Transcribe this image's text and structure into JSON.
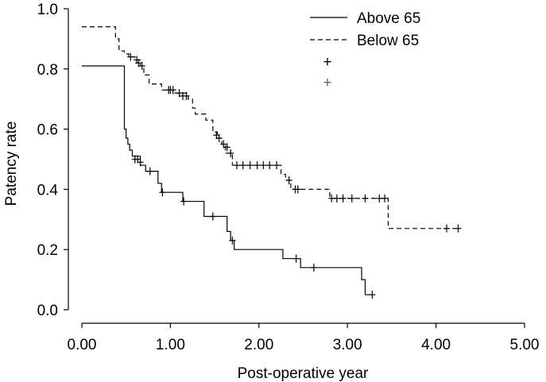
{
  "chart_data": {
    "type": "line",
    "subtype": "kaplan-meier step",
    "title": "",
    "xlabel": "Post-operative year",
    "ylabel": "Patency rate",
    "xlim": [
      0,
      5
    ],
    "ylim": [
      0,
      1
    ],
    "x_ticks": [
      "0.00",
      "1.00",
      "2.00",
      "3.00",
      "4.00",
      "5.00"
    ],
    "y_ticks": [
      "0.0",
      "0.2",
      "0.4",
      "0.6",
      "0.8",
      "1.0"
    ],
    "grid": false,
    "legend": "top-right",
    "legend_censor_symbols": [
      "+",
      "+"
    ],
    "series": [
      {
        "name": "Above 65",
        "line_style": "solid",
        "steps": [
          [
            0.0,
            0.81
          ],
          [
            0.48,
            0.6
          ],
          [
            0.5,
            0.57
          ],
          [
            0.52,
            0.55
          ],
          [
            0.54,
            0.53
          ],
          [
            0.57,
            0.51
          ],
          [
            0.66,
            0.48
          ],
          [
            0.72,
            0.46
          ],
          [
            0.86,
            0.42
          ],
          [
            0.9,
            0.39
          ],
          [
            1.14,
            0.36
          ],
          [
            1.38,
            0.31
          ],
          [
            1.64,
            0.26
          ],
          [
            1.68,
            0.23
          ],
          [
            1.72,
            0.2
          ],
          [
            2.27,
            0.17
          ],
          [
            2.47,
            0.14
          ],
          [
            3.16,
            0.1
          ],
          [
            3.2,
            0.05
          ],
          [
            3.3,
            0.05
          ]
        ],
        "censored": [
          [
            0.6,
            0.5
          ],
          [
            0.63,
            0.5
          ],
          [
            0.66,
            0.49
          ],
          [
            0.77,
            0.46
          ],
          [
            0.91,
            0.39
          ],
          [
            1.15,
            0.36
          ],
          [
            1.48,
            0.31
          ],
          [
            1.7,
            0.23
          ],
          [
            2.42,
            0.17
          ],
          [
            2.62,
            0.14
          ],
          [
            3.28,
            0.05
          ]
        ]
      },
      {
        "name": "Below 65",
        "line_style": "dashed",
        "steps": [
          [
            0.0,
            0.94
          ],
          [
            0.38,
            0.9
          ],
          [
            0.42,
            0.86
          ],
          [
            0.48,
            0.85
          ],
          [
            0.53,
            0.84
          ],
          [
            0.6,
            0.83
          ],
          [
            0.66,
            0.81
          ],
          [
            0.7,
            0.78
          ],
          [
            0.76,
            0.75
          ],
          [
            0.9,
            0.73
          ],
          [
            1.05,
            0.72
          ],
          [
            1.2,
            0.7
          ],
          [
            1.25,
            0.67
          ],
          [
            1.28,
            0.65
          ],
          [
            1.4,
            0.63
          ],
          [
            1.48,
            0.59
          ],
          [
            1.53,
            0.57
          ],
          [
            1.58,
            0.55
          ],
          [
            1.62,
            0.52
          ],
          [
            1.7,
            0.48
          ],
          [
            2.25,
            0.45
          ],
          [
            2.3,
            0.43
          ],
          [
            2.36,
            0.4
          ],
          [
            2.4,
            0.4
          ],
          [
            2.8,
            0.37
          ],
          [
            3.46,
            0.27
          ],
          [
            4.25,
            0.27
          ]
        ],
        "censored": [
          [
            0.55,
            0.84
          ],
          [
            0.62,
            0.83
          ],
          [
            0.64,
            0.82
          ],
          [
            0.68,
            0.81
          ],
          [
            0.98,
            0.73
          ],
          [
            1.0,
            0.73
          ],
          [
            1.03,
            0.73
          ],
          [
            1.1,
            0.72
          ],
          [
            1.14,
            0.71
          ],
          [
            1.18,
            0.71
          ],
          [
            1.52,
            0.58
          ],
          [
            1.55,
            0.57
          ],
          [
            1.6,
            0.55
          ],
          [
            1.64,
            0.54
          ],
          [
            1.68,
            0.52
          ],
          [
            1.75,
            0.48
          ],
          [
            1.82,
            0.48
          ],
          [
            1.9,
            0.48
          ],
          [
            1.98,
            0.48
          ],
          [
            2.05,
            0.48
          ],
          [
            2.12,
            0.48
          ],
          [
            2.2,
            0.48
          ],
          [
            2.34,
            0.43
          ],
          [
            2.41,
            0.4
          ],
          [
            2.44,
            0.4
          ],
          [
            2.82,
            0.37
          ],
          [
            2.88,
            0.37
          ],
          [
            2.95,
            0.37
          ],
          [
            3.05,
            0.37
          ],
          [
            3.2,
            0.37
          ],
          [
            3.36,
            0.37
          ],
          [
            3.42,
            0.37
          ],
          [
            4.12,
            0.27
          ],
          [
            4.25,
            0.27
          ]
        ]
      }
    ]
  }
}
